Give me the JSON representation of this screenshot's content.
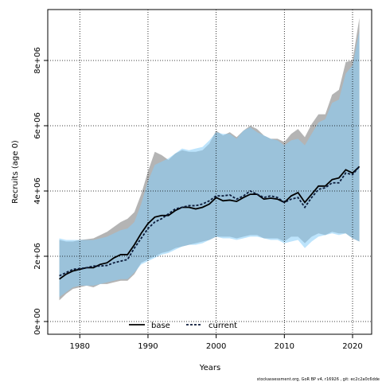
{
  "chart_data": {
    "type": "line",
    "ylabel": "Recruits (age 0)",
    "xlabel": "Years",
    "footnote": "stockassessment.org, GoR BP v4, r16926 , git: ec2c2a0c6dde",
    "x": [
      1977,
      1978,
      1979,
      1980,
      1981,
      1982,
      1983,
      1984,
      1985,
      1986,
      1987,
      1988,
      1989,
      1990,
      1991,
      1992,
      1993,
      1994,
      1995,
      1996,
      1997,
      1998,
      1999,
      2000,
      2001,
      2002,
      2003,
      2004,
      2005,
      2006,
      2007,
      2008,
      2009,
      2010,
      2011,
      2012,
      2013,
      2014,
      2015,
      2016,
      2017,
      2018,
      2019,
      2020,
      2021
    ],
    "xlim": [
      1975.3,
      2022.8
    ],
    "xticks": [
      1980,
      1990,
      2000,
      2010,
      2020
    ],
    "ylim": [
      -390000,
      9560000
    ],
    "yticks": [
      {
        "value": 0,
        "label": "0e+00"
      },
      {
        "value": 2000000,
        "label": "2e+06"
      },
      {
        "value": 4000000,
        "label": "4e+06"
      },
      {
        "value": 6000000,
        "label": "6e+06"
      },
      {
        "value": 8000000,
        "label": "8e+06"
      }
    ],
    "grid": true,
    "legend": "bottom",
    "series": [
      {
        "name": "base",
        "color": "#000000",
        "dash": false,
        "band_color": "#8c8c8c",
        "band_opacity": 0.65,
        "values": [
          1300000,
          1450000,
          1550000,
          1600000,
          1650000,
          1650000,
          1750000,
          1800000,
          1950000,
          2050000,
          2050000,
          2350000,
          2700000,
          3000000,
          3200000,
          3250000,
          3250000,
          3400000,
          3500000,
          3500000,
          3450000,
          3500000,
          3600000,
          3800000,
          3700000,
          3720000,
          3680000,
          3800000,
          3900000,
          3900000,
          3750000,
          3780000,
          3750000,
          3650000,
          3850000,
          3950000,
          3650000,
          3900000,
          4150000,
          4150000,
          4350000,
          4400000,
          4650000,
          4550000,
          4750000
        ],
        "upper": [
          2500000,
          2450000,
          2450000,
          2500000,
          2520000,
          2550000,
          2650000,
          2750000,
          2900000,
          3050000,
          3150000,
          3350000,
          3900000,
          4600000,
          5200000,
          5100000,
          4950000,
          5150000,
          5250000,
          5200000,
          5200000,
          5250000,
          5450000,
          5850000,
          5700000,
          5800000,
          5650000,
          5850000,
          6000000,
          5900000,
          5700000,
          5600000,
          5600000,
          5500000,
          5750000,
          5900000,
          5650000,
          6050000,
          6350000,
          6350000,
          6950000,
          7100000,
          7950000,
          8000000,
          9300000
        ],
        "lower": [
          650000,
          850000,
          1000000,
          1050000,
          1100000,
          1050000,
          1150000,
          1150000,
          1200000,
          1250000,
          1250000,
          1450000,
          1800000,
          1900000,
          2000000,
          2100000,
          2150000,
          2250000,
          2300000,
          2350000,
          2400000,
          2450000,
          2500000,
          2600000,
          2600000,
          2600000,
          2550000,
          2600000,
          2650000,
          2650000,
          2550000,
          2550000,
          2550000,
          2450000,
          2600000,
          2600000,
          2400000,
          2600000,
          2700000,
          2650000,
          2750000,
          2700000,
          2700000,
          2550000,
          2450000
        ]
      },
      {
        "name": "current",
        "color": "#0b1a3a",
        "dash": true,
        "band_color": "#87cefa",
        "band_opacity": 0.55,
        "values": [
          1400000,
          1500000,
          1600000,
          1620000,
          1650000,
          1700000,
          1700000,
          1720000,
          1800000,
          1850000,
          1900000,
          2250000,
          2550000,
          2850000,
          3050000,
          3150000,
          3300000,
          3450000,
          3500000,
          3550000,
          3550000,
          3600000,
          3700000,
          3850000,
          3850000,
          3880000,
          3750000,
          3850000,
          4000000,
          3900000,
          3800000,
          3850000,
          3800000,
          3650000,
          3750000,
          3800000,
          3500000,
          3800000,
          4050000,
          4100000,
          4250000,
          4250000,
          4550000,
          4500000,
          4750000
        ],
        "upper": [
          2550000,
          2500000,
          2500000,
          2500000,
          2500000,
          2500000,
          2550000,
          2600000,
          2700000,
          2800000,
          2850000,
          3050000,
          3600000,
          4300000,
          4800000,
          4900000,
          5000000,
          5150000,
          5300000,
          5250000,
          5300000,
          5350000,
          5550000,
          5800000,
          5750000,
          5750000,
          5600000,
          5850000,
          5950000,
          5800000,
          5700000,
          5600000,
          5550000,
          5400000,
          5550000,
          5600000,
          5400000,
          5750000,
          6100000,
          6200000,
          6700000,
          6800000,
          7600000,
          7850000,
          8900000
        ],
        "lower": [
          750000,
          900000,
          1050000,
          1100000,
          1100000,
          1100000,
          1150000,
          1200000,
          1250000,
          1300000,
          1300000,
          1500000,
          1750000,
          1850000,
          1950000,
          2050000,
          2100000,
          2200000,
          2300000,
          2350000,
          2350000,
          2400000,
          2500000,
          2600000,
          2550000,
          2550000,
          2500000,
          2550000,
          2600000,
          2600000,
          2550000,
          2500000,
          2500000,
          2400000,
          2450000,
          2500000,
          2250000,
          2450000,
          2600000,
          2650000,
          2700000,
          2650000,
          2700000,
          2550000,
          2450000
        ]
      }
    ]
  }
}
